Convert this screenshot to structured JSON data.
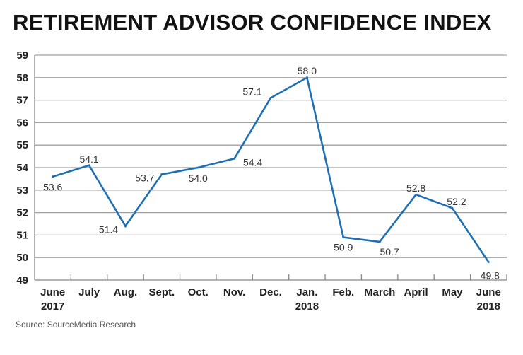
{
  "chart_data": {
    "type": "line",
    "title": "RETIREMENT ADVISOR CONFIDENCE INDEX",
    "source": "Source: SourceMedia Research",
    "categories": [
      [
        "June",
        "2017"
      ],
      [
        "July",
        ""
      ],
      [
        "Aug.",
        ""
      ],
      [
        "Sept.",
        ""
      ],
      [
        "Oct.",
        ""
      ],
      [
        "Nov.",
        ""
      ],
      [
        "Dec.",
        ""
      ],
      [
        "Jan.",
        "2018"
      ],
      [
        "Feb.",
        ""
      ],
      [
        "March",
        ""
      ],
      [
        "April",
        ""
      ],
      [
        "May",
        ""
      ],
      [
        "June",
        "2018"
      ]
    ],
    "values": [
      53.6,
      54.1,
      51.4,
      53.7,
      54.0,
      54.4,
      57.1,
      58.0,
      50.9,
      50.7,
      52.8,
      52.2,
      49.8
    ],
    "data_labels": [
      "53.6",
      "54.1",
      "51.4",
      "53.7",
      "54.0",
      "54.4",
      "57.1",
      "58.0",
      "50.9",
      "50.7",
      "52.8",
      "52.2",
      "49.8"
    ],
    "ylim": [
      49,
      59
    ],
    "yticks": [
      49,
      50,
      51,
      52,
      53,
      54,
      55,
      56,
      57,
      58,
      59
    ],
    "grid": true,
    "line_color": "#1f6fb4",
    "grid_color": "#a0a0a0"
  }
}
